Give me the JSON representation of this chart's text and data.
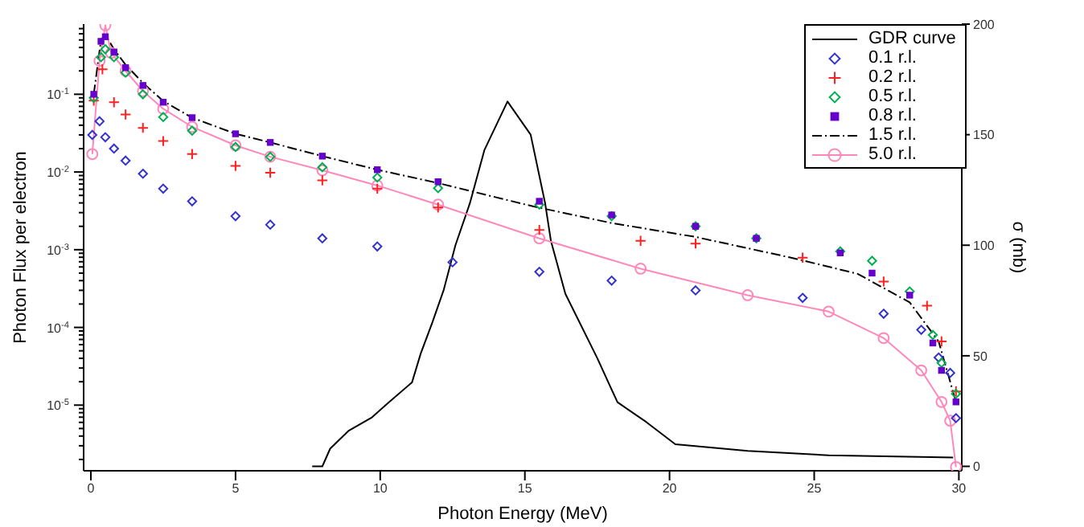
{
  "chart_data": {
    "type": "scatter",
    "xlabel": "Photon Energy (MeV)",
    "ylabel": "Photon Flux per electron",
    "y2label": "σ (mb)",
    "log": "y",
    "legend": "top right",
    "xlim": [
      -0.25,
      30.1
    ],
    "xticks": [
      0,
      5,
      10,
      15,
      20,
      25,
      30
    ],
    "ylim": [
      1.43e-06,
      0.8
    ],
    "yticks": [
      {
        "value": 2e-06,
        "label": null
      },
      {
        "value": 3e-06,
        "label": null
      },
      {
        "value": 4e-06,
        "label": null
      },
      {
        "value": 5e-06,
        "label": null
      },
      {
        "value": 6e-06,
        "label": null
      },
      {
        "value": 7e-06,
        "label": null
      },
      {
        "value": 8e-06,
        "label": null
      },
      {
        "value": 9e-06,
        "label": null
      },
      {
        "value": 1e-05,
        "label": "10$^{-5}$"
      },
      {
        "value": 2e-05,
        "label": null
      },
      {
        "value": 3e-05,
        "label": null
      },
      {
        "value": 4e-05,
        "label": null
      },
      {
        "value": 5e-05,
        "label": null
      },
      {
        "value": 6e-05,
        "label": null
      },
      {
        "value": 7e-05,
        "label": null
      },
      {
        "value": 8e-05,
        "label": null
      },
      {
        "value": 9e-05,
        "label": null
      },
      {
        "value": 0.0001,
        "label": "10$^{-4}$"
      },
      {
        "value": 0.0002,
        "label": null
      },
      {
        "value": 0.0003,
        "label": null
      },
      {
        "value": 0.0004,
        "label": null
      },
      {
        "value": 0.0005,
        "label": null
      },
      {
        "value": 0.0006,
        "label": null
      },
      {
        "value": 0.0007,
        "label": null
      },
      {
        "value": 0.0008,
        "label": null
      },
      {
        "value": 0.0009,
        "label": null
      },
      {
        "value": 0.001,
        "label": "10$^{-3}$"
      },
      {
        "value": 0.002,
        "label": null
      },
      {
        "value": 0.003,
        "label": null
      },
      {
        "value": 0.004,
        "label": null
      },
      {
        "value": 0.005,
        "label": null
      },
      {
        "value": 0.006,
        "label": null
      },
      {
        "value": 0.007,
        "label": null
      },
      {
        "value": 0.008,
        "label": null
      },
      {
        "value": 0.009,
        "label": null
      },
      {
        "value": 0.01,
        "label": "10$^{-2}$"
      },
      {
        "value": 0.02,
        "label": null
      },
      {
        "value": 0.03,
        "label": null
      },
      {
        "value": 0.04,
        "label": null
      },
      {
        "value": 0.05,
        "label": null
      },
      {
        "value": 0.06,
        "label": null
      },
      {
        "value": 0.07,
        "label": null
      },
      {
        "value": 0.08,
        "label": null
      },
      {
        "value": 0.09,
        "label": null
      },
      {
        "value": 0.1,
        "label": "10$^{-1}$"
      },
      {
        "value": 0.2,
        "label": null
      },
      {
        "value": 0.3,
        "label": null
      },
      {
        "value": 0.4,
        "label": null
      },
      {
        "value": 0.5,
        "label": null
      },
      {
        "value": 0.6,
        "label": null
      },
      {
        "value": 0.7,
        "label": null
      }
    ],
    "y2lim": [
      -2,
      200
    ],
    "y2ticks": [
      0,
      50,
      100,
      150,
      200
    ],
    "series": [
      {
        "name": "GDR curve",
        "type": "line",
        "axis": "y2",
        "color": "#000000",
        "line_style": "solid",
        "marker": "none",
        "x": [
          7.65,
          8.0,
          8.27,
          8.9,
          9.7,
          10.3,
          11.1,
          11.4,
          11.8,
          12.2,
          12.6,
          13.1,
          13.6,
          14.4,
          15.2,
          15.7,
          15.9,
          16.4,
          17.5,
          18.2,
          19.2,
          20.2,
          22.7,
          25.5,
          29.8
        ],
        "values": [
          0,
          0,
          8,
          16,
          22,
          29,
          38,
          51,
          65,
          80,
          100,
          119,
          143,
          165,
          150,
          119,
          102,
          78,
          49,
          29,
          20,
          10,
          7,
          5,
          4
        ]
      },
      {
        "name": "0.1 r.l.",
        "color": "#3333cc",
        "marker": "diamond",
        "x": [
          0.05,
          0.3,
          0.5,
          0.8,
          1.2,
          1.8,
          2.5,
          3.5,
          5,
          6.2,
          8,
          9.9,
          12.5,
          15.5,
          18,
          20.9,
          24.6,
          27.4,
          28.7,
          29.3,
          29.7,
          29.9
        ],
        "values": [
          0.03,
          0.045,
          0.028,
          0.02,
          0.014,
          0.0095,
          0.0061,
          0.0042,
          0.0027,
          0.0021,
          0.0014,
          0.0011,
          0.00069,
          0.00052,
          0.0004,
          0.0003,
          0.00024,
          0.00015,
          9.3e-05,
          4.1e-05,
          2.6e-05,
          6.8e-06
        ]
      },
      {
        "name": "0.2 r.l.",
        "color": "#ff2020",
        "marker": "cross",
        "x": [
          0.1,
          0.4,
          0.8,
          1.2,
          1.8,
          2.5,
          3.5,
          5,
          6.2,
          8,
          9.9,
          12,
          15.5,
          19,
          20.9,
          24.6,
          27.4,
          28.9,
          29.4,
          29.9
        ],
        "values": [
          0.083,
          0.21,
          0.079,
          0.055,
          0.037,
          0.025,
          0.017,
          0.012,
          0.0098,
          0.0078,
          0.0061,
          0.0035,
          0.0018,
          0.0013,
          0.0012,
          0.00079,
          0.00039,
          0.00019,
          6.6e-05,
          1.5e-05
        ]
      },
      {
        "name": "0.5 r.l.",
        "color": "#00b050",
        "marker": "diamond",
        "x": [
          0.1,
          0.35,
          0.5,
          0.8,
          1.2,
          1.8,
          2.5,
          3.5,
          5,
          6.2,
          8,
          9.9,
          12,
          15.5,
          18,
          20.9,
          23,
          25.9,
          27,
          28.3,
          29.1,
          29.4,
          29.9
        ],
        "values": [
          0.09,
          0.3,
          0.38,
          0.3,
          0.19,
          0.1,
          0.051,
          0.034,
          0.021,
          0.0157,
          0.0115,
          0.0085,
          0.0062,
          0.0038,
          0.0027,
          0.002,
          0.0014,
          0.00095,
          0.00072,
          0.00029,
          8e-05,
          3.5e-05,
          1.4e-05
        ]
      },
      {
        "name": "0.8 r.l.",
        "color": "#6600cc",
        "marker": "square",
        "x": [
          0.1,
          0.35,
          0.5,
          0.8,
          1.2,
          1.8,
          2.5,
          3.5,
          5,
          6.2,
          8,
          9.9,
          12,
          15.5,
          18,
          20.9,
          23,
          25.9,
          27,
          28.3,
          29.1,
          29.4,
          29.9
        ],
        "values": [
          0.1,
          0.48,
          0.55,
          0.35,
          0.22,
          0.13,
          0.079,
          0.05,
          0.031,
          0.024,
          0.016,
          0.0107,
          0.0075,
          0.0042,
          0.0028,
          0.002,
          0.0014,
          0.00091,
          0.0005,
          0.00026,
          6.3e-05,
          2.8e-05,
          1.1e-05
        ]
      },
      {
        "name": "1.5 r.l.",
        "type": "line",
        "color": "#000000",
        "line_style": "dashed",
        "marker": "none",
        "x": [
          0.1,
          0.35,
          0.5,
          0.8,
          1.2,
          1.8,
          2.5,
          3.5,
          5,
          6.2,
          8,
          9.9,
          12,
          15.3,
          18,
          20.9,
          24.2,
          26.5,
          28.3,
          29.3,
          29.9
        ],
        "values": [
          0.1,
          0.5,
          0.58,
          0.38,
          0.24,
          0.14,
          0.082,
          0.05,
          0.031,
          0.024,
          0.016,
          0.0107,
          0.0072,
          0.0036,
          0.0022,
          0.00146,
          0.00079,
          0.00049,
          0.00021,
          6.6e-05,
          1.1e-05
        ]
      },
      {
        "name": "5.0 r.l.",
        "type": "line",
        "color": "#ff88bb",
        "line_style": "solid",
        "marker": "circle",
        "x": [
          0.05,
          0.3,
          0.5,
          0.7,
          1.2,
          1.8,
          2.5,
          3.5,
          5,
          6.2,
          8,
          9.9,
          12,
          15.5,
          19,
          22.7,
          25.5,
          27.4,
          28.7,
          29.4,
          29.7,
          29.9
        ],
        "values": [
          0.017,
          0.27,
          0.77,
          0.34,
          0.2,
          0.11,
          0.065,
          0.038,
          0.022,
          0.0157,
          0.0105,
          0.0067,
          0.0038,
          0.0014,
          0.00057,
          0.00026,
          0.00016,
          7.3e-05,
          2.8e-05,
          1.1e-05,
          6.3e-06,
          1.6e-06
        ]
      }
    ]
  }
}
